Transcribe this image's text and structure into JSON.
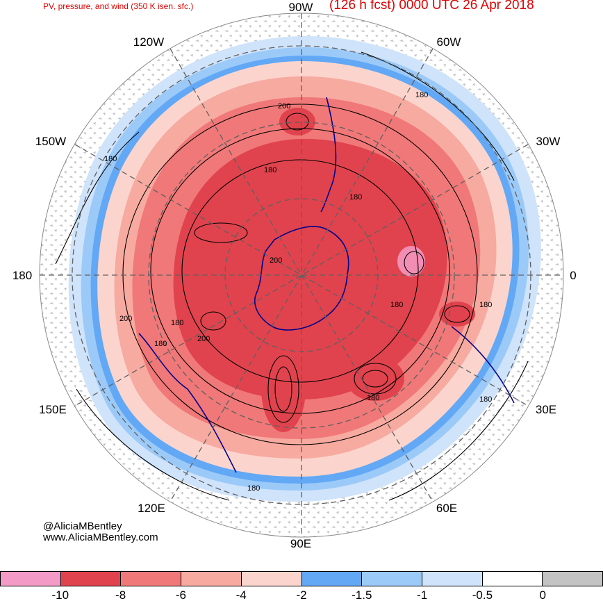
{
  "header": {
    "product_title": "PV, pressure, and wind (350 K isen. sfc.)",
    "forecast_title": "(126 h fcst) 0000 UTC 26 Apr 2018"
  },
  "map": {
    "projection": "south polar stereographic",
    "longitude_labels": [
      {
        "id": "90W",
        "text": "90W"
      },
      {
        "id": "60W",
        "text": "60W"
      },
      {
        "id": "120W",
        "text": "120W"
      },
      {
        "id": "150W",
        "text": "150W"
      },
      {
        "id": "30W",
        "text": "30W"
      },
      {
        "id": "180",
        "text": "180"
      },
      {
        "id": "0",
        "text": "0"
      },
      {
        "id": "150E",
        "text": "150E"
      },
      {
        "id": "30E",
        "text": "30E"
      },
      {
        "id": "120E",
        "text": "120E"
      },
      {
        "id": "60E",
        "text": "60E"
      },
      {
        "id": "90E",
        "text": "90E"
      }
    ],
    "contour_labels": [
      "200",
      "180",
      "180",
      "180",
      "180",
      "180",
      "200",
      "180",
      "200",
      "180",
      "180",
      "180",
      "180",
      "180",
      "200"
    ],
    "colors": {
      "pv_le_-10": "#f49ac6",
      "pv_-10_-8": "#e0434d",
      "pv_-8_-6": "#f07878",
      "pv_-6_-4": "#f7aaa0",
      "pv_-4_-2": "#fbd5cd",
      "pv_-2_-1.5": "#62a8f5",
      "pv_-1.5_-1": "#9ccaf8",
      "pv_-1_-0.5": "#cfe3fb",
      "pv_-0.5_0": "#ffffff",
      "pv_gt_0": "#c3c3c3",
      "coastline": "#00008b",
      "contour": "#000000",
      "title_red": "#e00000"
    }
  },
  "credits": {
    "handle": "@AliciaMBentley",
    "website": "www.AliciaMBentley.com"
  },
  "colorbar": {
    "segment_colors": [
      "#f49ac6",
      "#e0434d",
      "#f07878",
      "#f7aaa0",
      "#fbd5cd",
      "#62a8f5",
      "#9ccaf8",
      "#cfe3fb",
      "#ffffff",
      "#c3c3c3"
    ],
    "tick_labels": [
      "-10",
      "-8",
      "-6",
      "-4",
      "-2",
      "-1.5",
      "-1",
      "-0.5",
      "0"
    ]
  }
}
